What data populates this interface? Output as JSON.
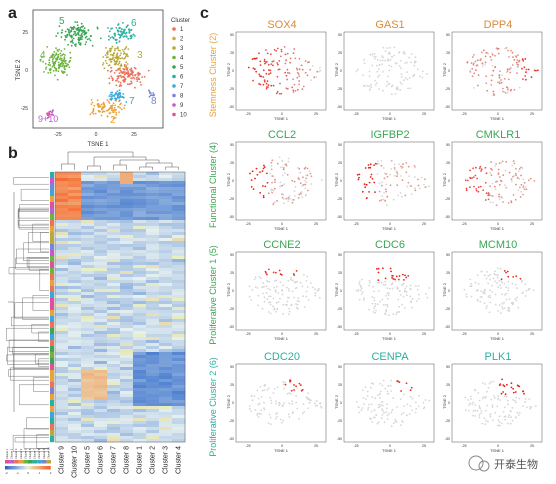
{
  "panel_labels": {
    "a": "a",
    "b": "b",
    "c": "c"
  },
  "panel_a": {
    "x_axis_label": "TSNE 1",
    "y_axis_label": "TSNE 2",
    "x_ticks": [
      "-25",
      "0",
      "25"
    ],
    "y_ticks": [
      "25",
      "0",
      "-25"
    ],
    "legend_title": "Cluster",
    "legend_items": [
      {
        "label": "1",
        "color": "#e8735a"
      },
      {
        "label": "2",
        "color": "#e8a23a"
      },
      {
        "label": "3",
        "color": "#b8a93a"
      },
      {
        "label": "4",
        "color": "#6db33f"
      },
      {
        "label": "5",
        "color": "#3aa655"
      },
      {
        "label": "6",
        "color": "#2ab0a0"
      },
      {
        "label": "7",
        "color": "#3aa7d8"
      },
      {
        "label": "8",
        "color": "#7a84d6"
      },
      {
        "label": "9",
        "color": "#c05ad0"
      },
      {
        "label": "10",
        "color": "#e0509a"
      }
    ],
    "cluster_labels": [
      {
        "text": "5",
        "color": "#3aa655"
      },
      {
        "text": "6",
        "color": "#2ab0a0"
      },
      {
        "text": "4",
        "color": "#6db33f"
      },
      {
        "text": "3",
        "color": "#b8a93a"
      },
      {
        "text": "1",
        "color": "#e8735a"
      },
      {
        "text": "7",
        "color": "#3aa7d8"
      },
      {
        "text": "8",
        "color": "#7a84d6"
      },
      {
        "text": "2",
        "color": "#e8a23a"
      },
      {
        "text": "9+10",
        "color": "#c05ad0"
      }
    ]
  },
  "panel_b": {
    "columns": [
      "Cluster 9",
      "Cluster 10",
      "Cluster 5",
      "Cluster 6",
      "Cluster 7",
      "Cluster 8",
      "Cluster 1",
      "Cluster 2",
      "Cluster 3",
      "Cluster 4"
    ],
    "key_labels": [
      "Cluster 1",
      "Cluster 2",
      "Cluster 3",
      "Cluster 4",
      "Cluster 5",
      "Cluster 6",
      "Cluster 7",
      "Cluster 8",
      "Cluster 9",
      "Cluster 10"
    ],
    "scale_ticks": [
      "-2",
      "-1",
      "0",
      "1",
      "2"
    ]
  },
  "panel_c": {
    "row_labels": [
      {
        "text": "Stemness Cluster (2)",
        "color": "#e8a23a"
      },
      {
        "text": "Functional Cluster (4)",
        "color": "#3aa655"
      },
      {
        "text": "Proliferative Cluster 1 (5)",
        "color": "#3aa655"
      },
      {
        "text": "Proliferative Cluster 2 (6)",
        "color": "#2ab0a0"
      }
    ],
    "genes": [
      "SOX4",
      "GAS1",
      "DPP4",
      "CCL2",
      "IGFBP2",
      "CMKLR1",
      "CCNE2",
      "CDC6",
      "MCM10",
      "CDC20",
      "CENPA",
      "PLK1"
    ],
    "axis_x_label": "TSNE 1",
    "axis_y_label": "TSNE 2",
    "x_ticks": [
      "-25",
      "0",
      "25"
    ],
    "y_ticks": [
      "50",
      "25",
      "0",
      "-25",
      "-50"
    ]
  },
  "watermark": "开泰生物"
}
